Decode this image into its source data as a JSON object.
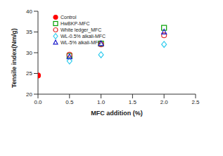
{
  "chart_data": {
    "type": "scatter",
    "x_label": "MFC addition (%)",
    "y_label": "Tensile index(Nm/g)",
    "xlim": [
      0,
      2.5
    ],
    "xticks": [
      {
        "value": 0,
        "label": "0.0"
      },
      0.5,
      {
        "value": 1,
        "label": "1.0"
      },
      1.5,
      {
        "value": 2,
        "label": "2.0"
      },
      2.5
    ],
    "ylim": [
      20,
      40
    ],
    "yticks": [
      20,
      25,
      30,
      35,
      40
    ],
    "grid": false,
    "legend": "upper left",
    "series": [
      {
        "name": "Control",
        "color": "#ff0000",
        "marker": "circle_filled",
        "x": [
          0
        ],
        "values": [
          24.5
        ]
      },
      {
        "name": "HwBKP-MFC",
        "color": "#00a000",
        "marker": "square",
        "x": [
          0.5,
          1,
          2
        ],
        "values": [
          29.2,
          32.2,
          36.0
        ]
      },
      {
        "name": "White ledger_MFC",
        "color": "#e03030",
        "marker": "circle",
        "x": [
          0.5,
          1,
          2
        ],
        "values": [
          29.5,
          32.0,
          34.2
        ]
      },
      {
        "name": "WL-0.5% alkali-MFC",
        "color": "#33ccee",
        "marker": "diamond",
        "x": [
          0.5,
          1,
          2
        ],
        "values": [
          28.0,
          29.5,
          32.0
        ]
      },
      {
        "name": "WL-5% alkali-MFC",
        "color": "#2020cc",
        "marker": "triangle",
        "x": [
          0.5,
          1,
          2
        ],
        "values": [
          29.0,
          32.2,
          35.0
        ]
      }
    ]
  }
}
